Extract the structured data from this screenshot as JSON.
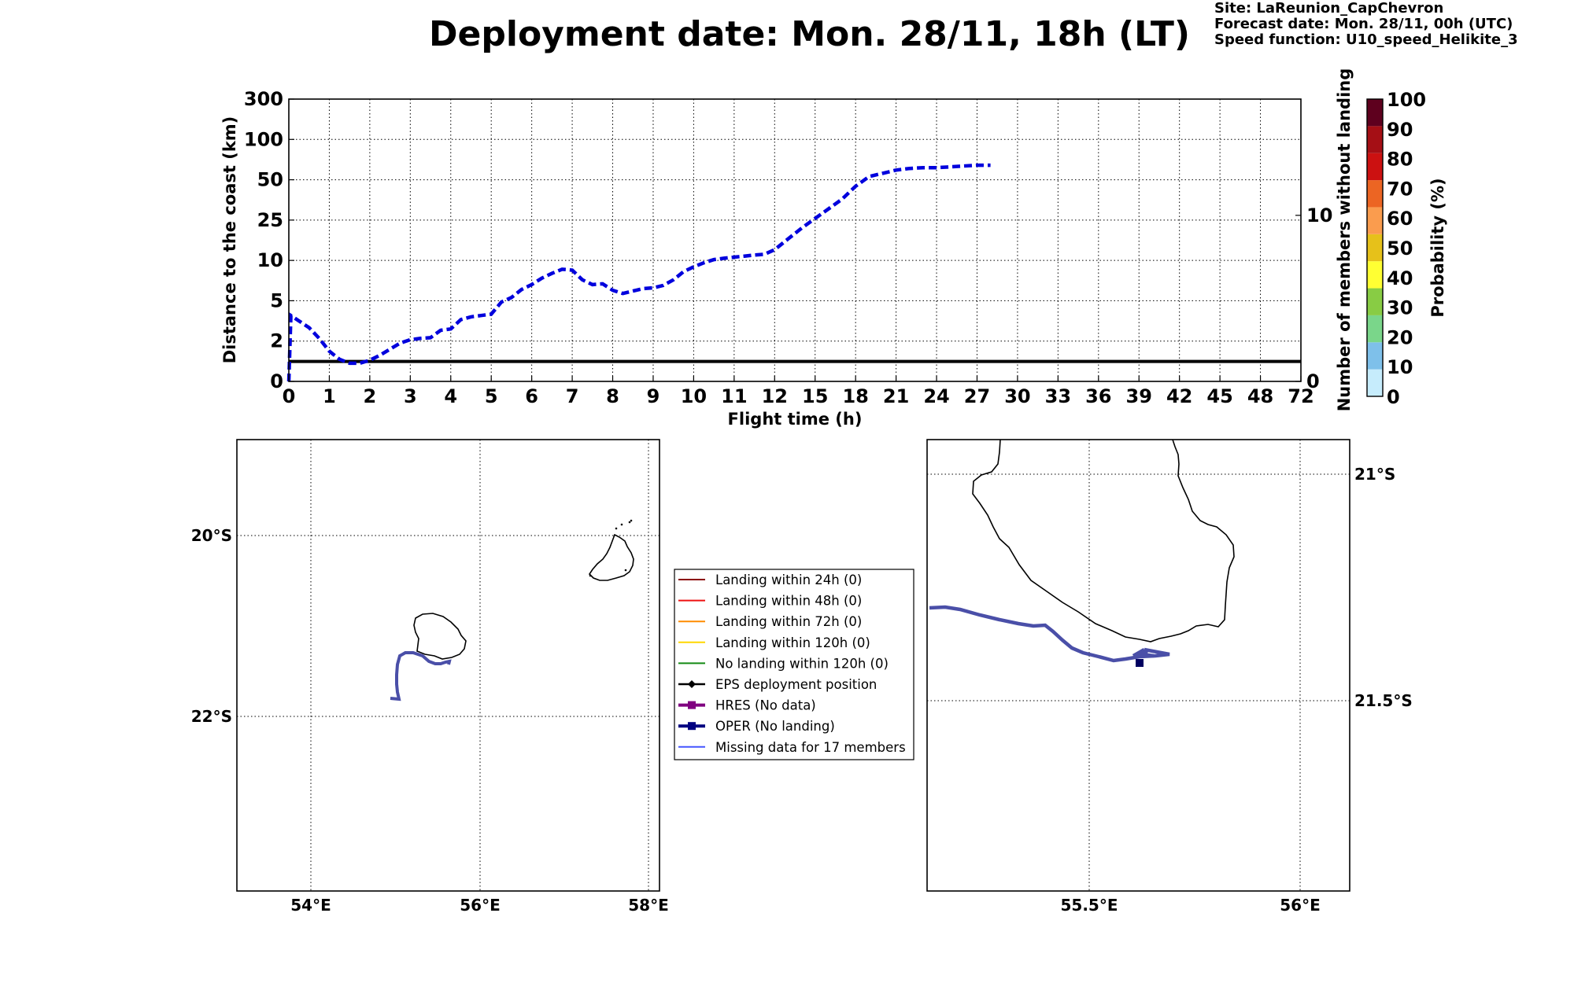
{
  "title": "Deployment date: Mon. 28/11, 18h (LT)",
  "meta": {
    "site": "Site: LaReunion_CapChevron",
    "forecast": "Forecast date: Mon. 28/11, 00h (UTC)",
    "speed": "Speed function: U10_speed_Helikite_3"
  },
  "chart_data": [
    {
      "type": "line",
      "xlabel": "Flight time (h)",
      "ylabel": "Distance to the coast (km)",
      "y2label": "Number of members without landing",
      "x_tick_labels": [
        "0",
        "1",
        "2",
        "3",
        "4",
        "5",
        "6",
        "7",
        "8",
        "9",
        "10",
        "11",
        "12",
        "15",
        "18",
        "21",
        "24",
        "27",
        "30",
        "33",
        "36",
        "39",
        "42",
        "45",
        "48",
        "72"
      ],
      "y_tick_labels": [
        "0",
        "2",
        "5",
        "10",
        "25",
        "50",
        "100",
        "300"
      ],
      "y2_tick_labels": [
        "0",
        "10"
      ],
      "y2_range": [
        0,
        17
      ],
      "members_without_landing": 1.2,
      "grid": true,
      "series": [
        {
          "style": "dashed",
          "color": "#0000dd",
          "x": [
            0,
            0.05,
            0.25,
            0.5,
            0.75,
            1,
            1.25,
            1.5,
            1.75,
            2,
            2.25,
            2.5,
            2.75,
            3,
            3.25,
            3.5,
            3.75,
            4,
            4.25,
            4.5,
            4.75,
            5,
            5.25,
            5.5,
            5.75,
            6,
            6.25,
            6.5,
            6.75,
            7,
            7.25,
            7.5,
            7.75,
            8,
            8.25,
            8.5,
            8.75,
            9,
            9.25,
            9.5,
            9.75,
            10,
            10.25,
            10.5,
            10.75,
            11,
            11.25,
            11.5,
            11.75,
            12,
            13,
            14,
            15,
            16,
            17,
            18,
            19,
            20,
            21,
            22,
            23,
            24,
            25,
            26,
            27,
            28
          ],
          "y": [
            0,
            3.9,
            3.5,
            3.0,
            2.2,
            1.5,
            1.1,
            0.9,
            0.9,
            1.05,
            1.3,
            1.6,
            1.9,
            2.1,
            2.2,
            2.25,
            2.8,
            2.9,
            3.6,
            3.8,
            3.9,
            4.0,
            4.9,
            5.4,
            6.4,
            7.0,
            7.8,
            8.4,
            8.9,
            8.8,
            7.6,
            7.0,
            7.1,
            6.3,
            5.9,
            6.2,
            6.5,
            6.6,
            6.9,
            7.6,
            8.6,
            9.2,
            9.7,
            10.3,
            10.8,
            11.2,
            11.6,
            12.0,
            12.3,
            14.0,
            18,
            22,
            26,
            32,
            38,
            46,
            54,
            58,
            62,
            64,
            65,
            65,
            66,
            67,
            68,
            68
          ]
        }
      ]
    },
    {
      "type": "map",
      "region": "overview",
      "x_tick_labels": [
        "54°E",
        "56°E",
        "58°E"
      ],
      "y_tick_labels": [
        "20°S",
        "22°S"
      ],
      "grid": true
    },
    {
      "type": "map",
      "region": "zoom",
      "x_tick_labels": [
        "55.5°E",
        "56°E"
      ],
      "y_tick_labels": [
        "21°S",
        "21.5°S"
      ],
      "grid": true
    }
  ],
  "legend": {
    "items": [
      {
        "label": "Landing within 24h (0)",
        "color": "#8b0000",
        "marker": "none",
        "width": 2
      },
      {
        "label": "Landing within 48h (0)",
        "color": "#ee1111",
        "marker": "none",
        "width": 2
      },
      {
        "label": "Landing within 72h (0)",
        "color": "#ff8c00",
        "marker": "none",
        "width": 2
      },
      {
        "label": "Landing within 120h (0)",
        "color": "#ffd700",
        "marker": "none",
        "width": 2
      },
      {
        "label": "No landing within 120h (0)",
        "color": "#138a13",
        "marker": "none",
        "width": 2
      },
      {
        "label": "EPS deployment position",
        "color": "#000000",
        "marker": "diamond",
        "width": 2.5
      },
      {
        "label": "HRES (No data)",
        "color": "#800080",
        "marker": "square",
        "width": 4
      },
      {
        "label": "OPER (No landing)",
        "color": "#000080",
        "marker": "square",
        "width": 4
      },
      {
        "label": "Missing data for 17 members",
        "color": "#4455ff",
        "marker": "none",
        "width": 2
      }
    ]
  },
  "colorbar": {
    "label": "Probability (%)",
    "ticks": [
      "0",
      "10",
      "20",
      "30",
      "40",
      "50",
      "60",
      "70",
      "80",
      "90",
      "100"
    ],
    "colors": [
      "#c6ecfc",
      "#7ec0ea",
      "#7ad68a",
      "#88cc44",
      "#ffff33",
      "#e6c11a",
      "#fa9c4e",
      "#ec6523",
      "#cc1111",
      "#a50f15",
      "#5e001e"
    ]
  },
  "colors": {
    "trajectory": "#4a4fa8",
    "oper_marker": "#000060",
    "dashed_series": "#0000dd"
  }
}
